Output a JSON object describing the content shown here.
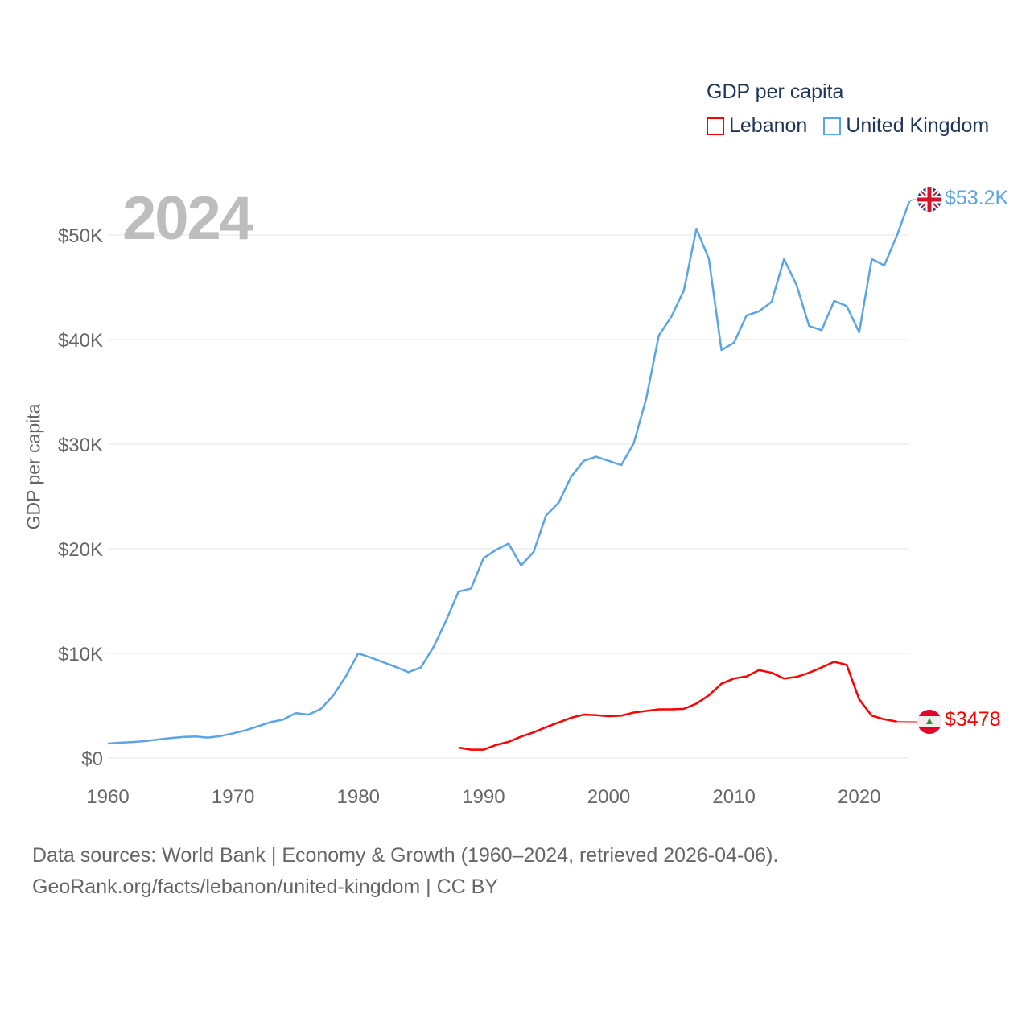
{
  "chart_data": {
    "type": "line",
    "title": "2024",
    "xlabel": "",
    "ylabel": "GDP per capita",
    "xlim": [
      1960,
      2024
    ],
    "ylim": [
      0,
      55000
    ],
    "x_ticks": [
      "1960",
      "1970",
      "1980",
      "1990",
      "2000",
      "2010",
      "2020"
    ],
    "y_ticks": [
      {
        "v": 0,
        "label": "$0"
      },
      {
        "v": 10000,
        "label": "$10K"
      },
      {
        "v": 20000,
        "label": "$20K"
      },
      {
        "v": 30000,
        "label": "$30K"
      },
      {
        "v": 40000,
        "label": "$40K"
      },
      {
        "v": 50000,
        "label": "$50K"
      }
    ],
    "grid": true,
    "legend": {
      "title": "GDP per capita",
      "placement": "top-right"
    },
    "series": [
      {
        "name": "Lebanon",
        "color": "#ff0000",
        "end_label": "$3478",
        "flag": "lebanon-flag",
        "start_year": 1988,
        "values": [
          1000,
          800,
          800,
          1250,
          1550,
          2050,
          2450,
          2950,
          3400,
          3850,
          4150,
          4100,
          4000,
          4050,
          4350,
          4500,
          4650,
          4650,
          4700,
          5200,
          6000,
          7100,
          7600,
          7800,
          8400,
          8150,
          7600,
          7750,
          8150,
          8650,
          9200,
          8900,
          5600,
          4050,
          3700,
          3478
        ]
      },
      {
        "name": "United Kingdom",
        "color": "#5ba4e8",
        "end_label": "$53.2K",
        "flag": "united-kingdom-flag",
        "start_year": 1960,
        "values": [
          1380,
          1470,
          1530,
          1620,
          1770,
          1900,
          2010,
          2060,
          1950,
          2100,
          2350,
          2650,
          3030,
          3430,
          3670,
          4300,
          4140,
          4680,
          5980,
          7800,
          10000,
          9600,
          9150,
          8700,
          8200,
          8650,
          10600,
          13100,
          15900,
          16200,
          19100,
          19900,
          20500,
          18400,
          19700,
          23200,
          24400,
          26900,
          28400,
          28800,
          28400,
          28000,
          30100,
          34400,
          40400,
          42200,
          44700,
          50600,
          47700,
          39000,
          39700,
          42300,
          42700,
          43600,
          47700,
          45200,
          41300,
          40900,
          43700,
          43200,
          40700,
          47700,
          47100,
          49900,
          53200
        ]
      }
    ]
  },
  "footer": {
    "line1": "Data sources: World Bank | Economy & Growth (1960–2024, retrieved 2026-04-06).",
    "line2": "GeoRank.org/facts/lebanon/united-kingdom | CC BY"
  }
}
